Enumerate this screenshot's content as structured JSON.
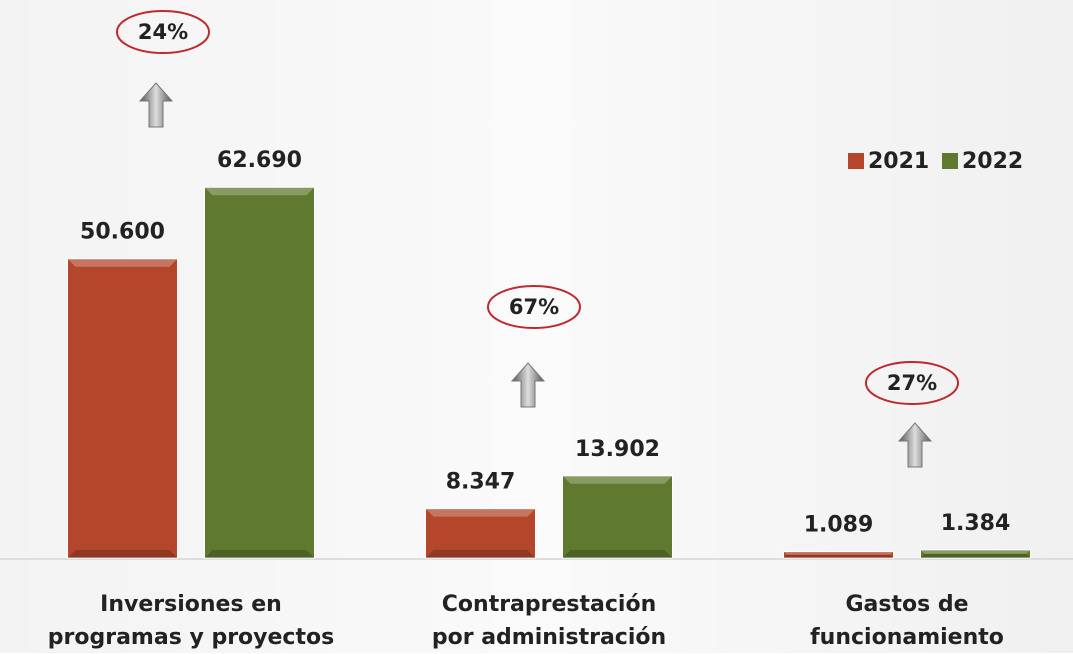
{
  "chart_data": {
    "type": "bar",
    "categories": [
      "Inversiones en\nprogramas y proyectos",
      "Contraprestación\npor administración",
      "Gastos de\nfuncionamiento"
    ],
    "series": [
      {
        "name": "2021",
        "color": "#b4472b",
        "values": [
          50600,
          8347,
          1089
        ],
        "value_labels": [
          "50.600",
          "8.347",
          "1.089"
        ]
      },
      {
        "name": "2022",
        "color": "#5f7a2f",
        "values": [
          62690,
          13902,
          1384
        ],
        "value_labels": [
          "62.690",
          "13.902",
          "1.384"
        ]
      }
    ],
    "annotations": [
      "24%",
      "67%",
      "27%"
    ],
    "ylim": [
      0,
      70000
    ],
    "legend": "top-right"
  }
}
